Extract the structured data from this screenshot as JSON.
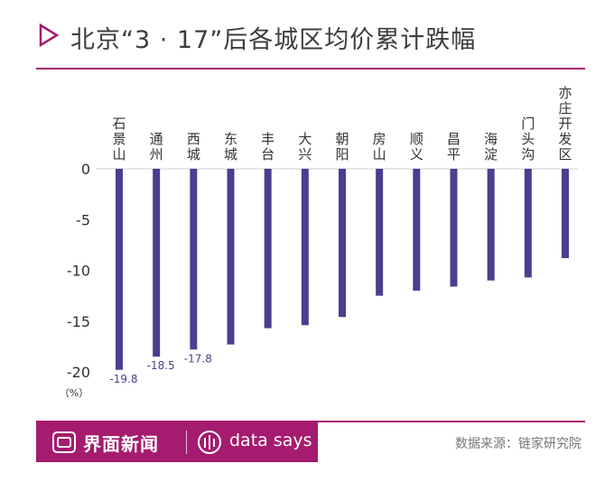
{
  "title": "北京“3 · 17”后各城区均价累计跌幅",
  "colors": {
    "accent": "#a41b6f",
    "bar": "#4b3e8f",
    "text": "#3d3d3d"
  },
  "chart_data": {
    "type": "bar",
    "categories": [
      "石景山",
      "通州",
      "西城",
      "东城",
      "丰台",
      "大兴",
      "朝阳",
      "房山",
      "顺义",
      "昌平",
      "海淀",
      "门头沟",
      "亦庄开发区"
    ],
    "values": [
      -19.8,
      -18.5,
      -17.8,
      -17.3,
      -15.7,
      -15.4,
      -14.6,
      -12.5,
      -12.0,
      -11.6,
      -11.0,
      -10.7,
      -8.8
    ],
    "labels": [
      "-19.8",
      "-18.5",
      "-17.8",
      "",
      "",
      "",
      "",
      "",
      "",
      "",
      "",
      "",
      ""
    ],
    "yticks": [
      "0",
      "-5",
      "-10",
      "-15",
      "-20"
    ],
    "ylim": [
      -20,
      0
    ],
    "yunit": "（%）",
    "grid": false
  },
  "footer": {
    "brand": "界面新闻",
    "data_says": "data says",
    "source": "数据来源：链家研究院"
  }
}
